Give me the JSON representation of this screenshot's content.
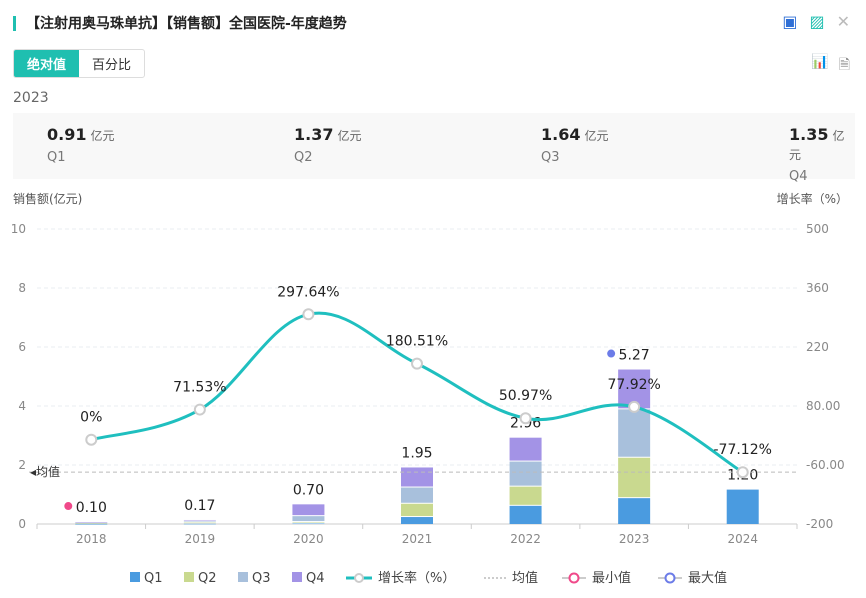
{
  "header": {
    "title": "【注射用奥马珠单抗】【销售额】全国医院-年度趋势",
    "excel_icon": "excel-export-icon",
    "image_icon": "image-export-icon",
    "close_icon": "close-icon"
  },
  "toggle": {
    "absolute": "绝对值",
    "percent": "百分比"
  },
  "summary": {
    "year": "2023",
    "unit": "亿元",
    "items": [
      {
        "value": "0.91",
        "label": "Q1"
      },
      {
        "value": "1.37",
        "label": "Q2"
      },
      {
        "value": "1.64",
        "label": "Q3"
      },
      {
        "value": "1.35",
        "label": "Q4"
      }
    ]
  },
  "chart_data": {
    "type": "bar",
    "stacked": true,
    "categories": [
      "2018",
      "2019",
      "2020",
      "2021",
      "2022",
      "2023",
      "2024"
    ],
    "series": [
      {
        "name": "Q1",
        "color": "#4a9be0",
        "values": [
          0.03,
          0.04,
          0.05,
          0.27,
          0.65,
          0.91,
          1.2
        ]
      },
      {
        "name": "Q2",
        "color": "#c9d98f",
        "values": [
          0.02,
          0.04,
          0.05,
          0.45,
          0.65,
          1.37,
          0
        ]
      },
      {
        "name": "Q3",
        "color": "#a8c0dc",
        "values": [
          0.02,
          0.04,
          0.2,
          0.55,
          0.85,
          1.64,
          0
        ]
      },
      {
        "name": "Q4",
        "color": "#a393e6",
        "values": [
          0.03,
          0.05,
          0.4,
          0.68,
          0.81,
          1.35,
          0
        ]
      }
    ],
    "totals": [
      "0.10",
      "0.17",
      "0.70",
      "1.95",
      "2.96",
      "5.27",
      "1.20"
    ],
    "line": {
      "name": "增长率（%）",
      "color": "#1fbfbf",
      "values": [
        0,
        71.53,
        297.64,
        180.51,
        50.97,
        77.92,
        -77.12
      ],
      "labels": [
        "0%",
        "71.53%",
        "297.64%",
        "180.51%",
        "50.97%",
        "77.92%",
        "-77.12%"
      ]
    },
    "mean": {
      "name": "均值",
      "value": 1.76,
      "label": "均值"
    },
    "min": {
      "name": "最小值",
      "index": 0,
      "color": "#f0498a"
    },
    "max": {
      "name": "最大值",
      "index": 5,
      "color": "#6c7ce8"
    },
    "ylabel": "销售额(亿元)",
    "y2label": "增长率（%）",
    "ylim": [
      0,
      10
    ],
    "yticks": [
      "0",
      "2",
      "4",
      "6",
      "8",
      "10"
    ],
    "y2lim": [
      -200,
      500
    ],
    "y2ticks": [
      "-200",
      "-60.00",
      "80.00",
      "220",
      "360",
      "500"
    ],
    "legend_position": "bottom"
  }
}
